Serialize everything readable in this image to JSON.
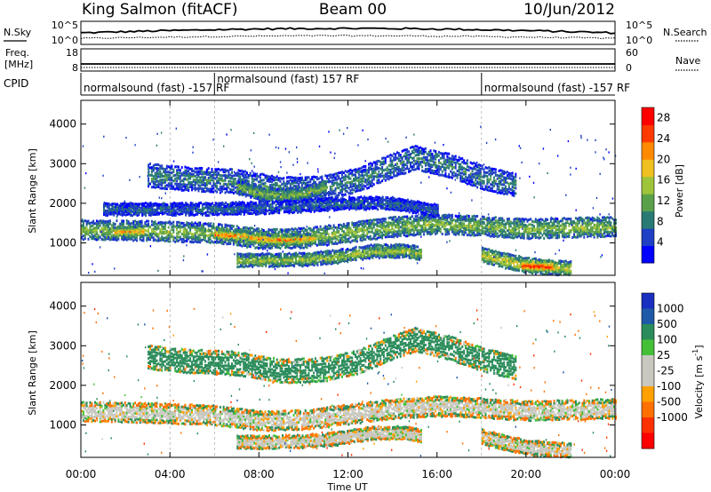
{
  "header": {
    "station": "King Salmon (fitACF)",
    "beam": "Beam 00",
    "date": "10/Jun/2012"
  },
  "left_labels": {
    "nsky": "N.Sky",
    "freq_line1": "Freq.",
    "freq_line2": "[MHz]",
    "cpid": "CPID"
  },
  "right_labels": {
    "nsearch": "N.Search",
    "nave": "Nave"
  },
  "noise_panel": {
    "left_ticks": [
      "10^5",
      "10^0"
    ],
    "right_ticks": [
      "10^5",
      "10^0"
    ]
  },
  "freq_panel": {
    "left_ticks": [
      "18",
      "8"
    ],
    "right_ticks": [
      "60",
      "0"
    ]
  },
  "cpid_segments": [
    {
      "label": "normalsound (fast) -157 RF",
      "start_hour": 0.0
    },
    {
      "label": "normalsound (fast) 157 RF",
      "start_hour": 6.0
    },
    {
      "label": "normalsound (fast) -157 RF",
      "start_hour": 18.0
    }
  ],
  "x_axis": {
    "label": "Time UT",
    "ticks": [
      "00:00",
      "04:00",
      "08:00",
      "12:00",
      "16:00",
      "20:00",
      "00:00"
    ]
  },
  "power_colorbar": {
    "label": "Power [dB]",
    "ticks": [
      "4",
      "8",
      "12",
      "16",
      "20",
      "24",
      "28"
    ],
    "colors": [
      "#0000ff",
      "#1f3fc4",
      "#2a7a74",
      "#5aa04a",
      "#9ec43a",
      "#f0c020",
      "#ff8a00",
      "#ff3a00",
      "#ff0000"
    ]
  },
  "velocity_colorbar": {
    "label": "Velocity [m s^-1]",
    "ticks": [
      "1000",
      "500",
      "100",
      "25",
      "-25",
      "-100",
      "-500",
      "-1000"
    ],
    "colors": [
      "#1a2ec0",
      "#1f5aa8",
      "#2a8c5a",
      "#44c038",
      "#c8c8c0",
      "#c8c8c0",
      "#ffa000",
      "#ff7000",
      "#ff3000",
      "#ff0000"
    ]
  },
  "chart_data": [
    {
      "type": "heatmap",
      "title": "Power",
      "xlabel": "Time UT",
      "ylabel": "Slant Range [km]",
      "xlim": [
        0,
        24
      ],
      "ylim": [
        180,
        4600
      ],
      "y_ticks": [
        1000,
        2000,
        3000,
        4000
      ],
      "colorbar_range": [
        0,
        30
      ],
      "bands": [
        {
          "t": [
            0,
            3,
            6,
            8,
            10,
            12,
            14,
            16,
            18,
            20,
            22,
            24
          ],
          "center": [
            1330,
            1300,
            1240,
            1100,
            1120,
            1260,
            1400,
            1470,
            1420,
            1350,
            1380,
            1400
          ],
          "width": 230,
          "power": 14
        },
        {
          "t": [
            6.0,
            7.5,
            8.5,
            9.5,
            10.5
          ],
          "center": [
            1220,
            1150,
            1080,
            1080,
            1120
          ],
          "width": 110,
          "power": 22
        },
        {
          "t": [
            1.5,
            2.8
          ],
          "center": [
            1280,
            1300
          ],
          "width": 100,
          "power": 22
        },
        {
          "t": [
            3.0,
            5.0,
            7.0,
            9.0,
            11.0,
            12.5,
            14.0,
            15.0,
            16.5,
            18.0,
            19.5
          ],
          "center": [
            2700,
            2600,
            2550,
            2350,
            2400,
            2600,
            2950,
            3150,
            2950,
            2650,
            2450
          ],
          "width": 280,
          "power": 9
        },
        {
          "t": [
            7.0,
            8.0,
            9.0,
            10.0,
            11.0
          ],
          "center": [
            2400,
            2250,
            2200,
            2250,
            2400
          ],
          "width": 160,
          "power": 14
        },
        {
          "t": [
            1.0,
            3.0,
            6.0,
            9.0,
            12.0,
            14.0,
            16.0
          ],
          "center": [
            1850,
            1850,
            1850,
            1900,
            2000,
            2000,
            1800
          ],
          "width": 140,
          "power": 7
        },
        {
          "t": [
            7.0,
            8.5,
            10.0,
            11.5,
            13.0,
            14.5,
            15.3
          ],
          "center": [
            560,
            560,
            580,
            650,
            780,
            800,
            720
          ],
          "width": 150,
          "power": 15
        },
        {
          "t": [
            18.0,
            19.0,
            20.0,
            21.0,
            22.0
          ],
          "center": [
            700,
            550,
            430,
            380,
            350
          ],
          "width": 170,
          "power": 18
        },
        {
          "t": [
            19.8,
            20.5,
            21.2
          ],
          "center": [
            430,
            410,
            400
          ],
          "width": 110,
          "power": 28
        }
      ]
    },
    {
      "type": "heatmap",
      "title": "Velocity",
      "xlabel": "Time UT",
      "ylabel": "Slant Range [km]",
      "xlim": [
        0,
        24
      ],
      "ylim": [
        180,
        4600
      ],
      "y_ticks": [
        1000,
        2000,
        3000,
        4000
      ],
      "colorbar_range": [
        -1000,
        1000
      ],
      "bands": [
        {
          "t": [
            0,
            3,
            6,
            8,
            10,
            12,
            14,
            16,
            18,
            20,
            22,
            24
          ],
          "center": [
            1330,
            1300,
            1240,
            1100,
            1120,
            1260,
            1400,
            1470,
            1420,
            1350,
            1380,
            1400
          ],
          "width": 230,
          "velocity": 0
        },
        {
          "t": [
            3.0,
            5.0,
            7.0,
            9.0,
            11.0,
            12.5,
            14.0,
            15.0,
            16.5,
            18.0,
            19.5
          ],
          "center": [
            2700,
            2600,
            2550,
            2350,
            2400,
            2600,
            2950,
            3150,
            2950,
            2650,
            2450
          ],
          "width": 280,
          "velocity": 150
        },
        {
          "t": [
            7.0,
            8.5,
            10.0,
            11.5,
            13.0,
            14.5,
            15.3
          ],
          "center": [
            560,
            560,
            580,
            650,
            780,
            800,
            720
          ],
          "width": 150,
          "velocity": 0
        },
        {
          "t": [
            18.0,
            19.0,
            20.0,
            21.0,
            22.0
          ],
          "center": [
            700,
            550,
            430,
            380,
            350
          ],
          "width": 170,
          "velocity": 0
        }
      ]
    }
  ]
}
